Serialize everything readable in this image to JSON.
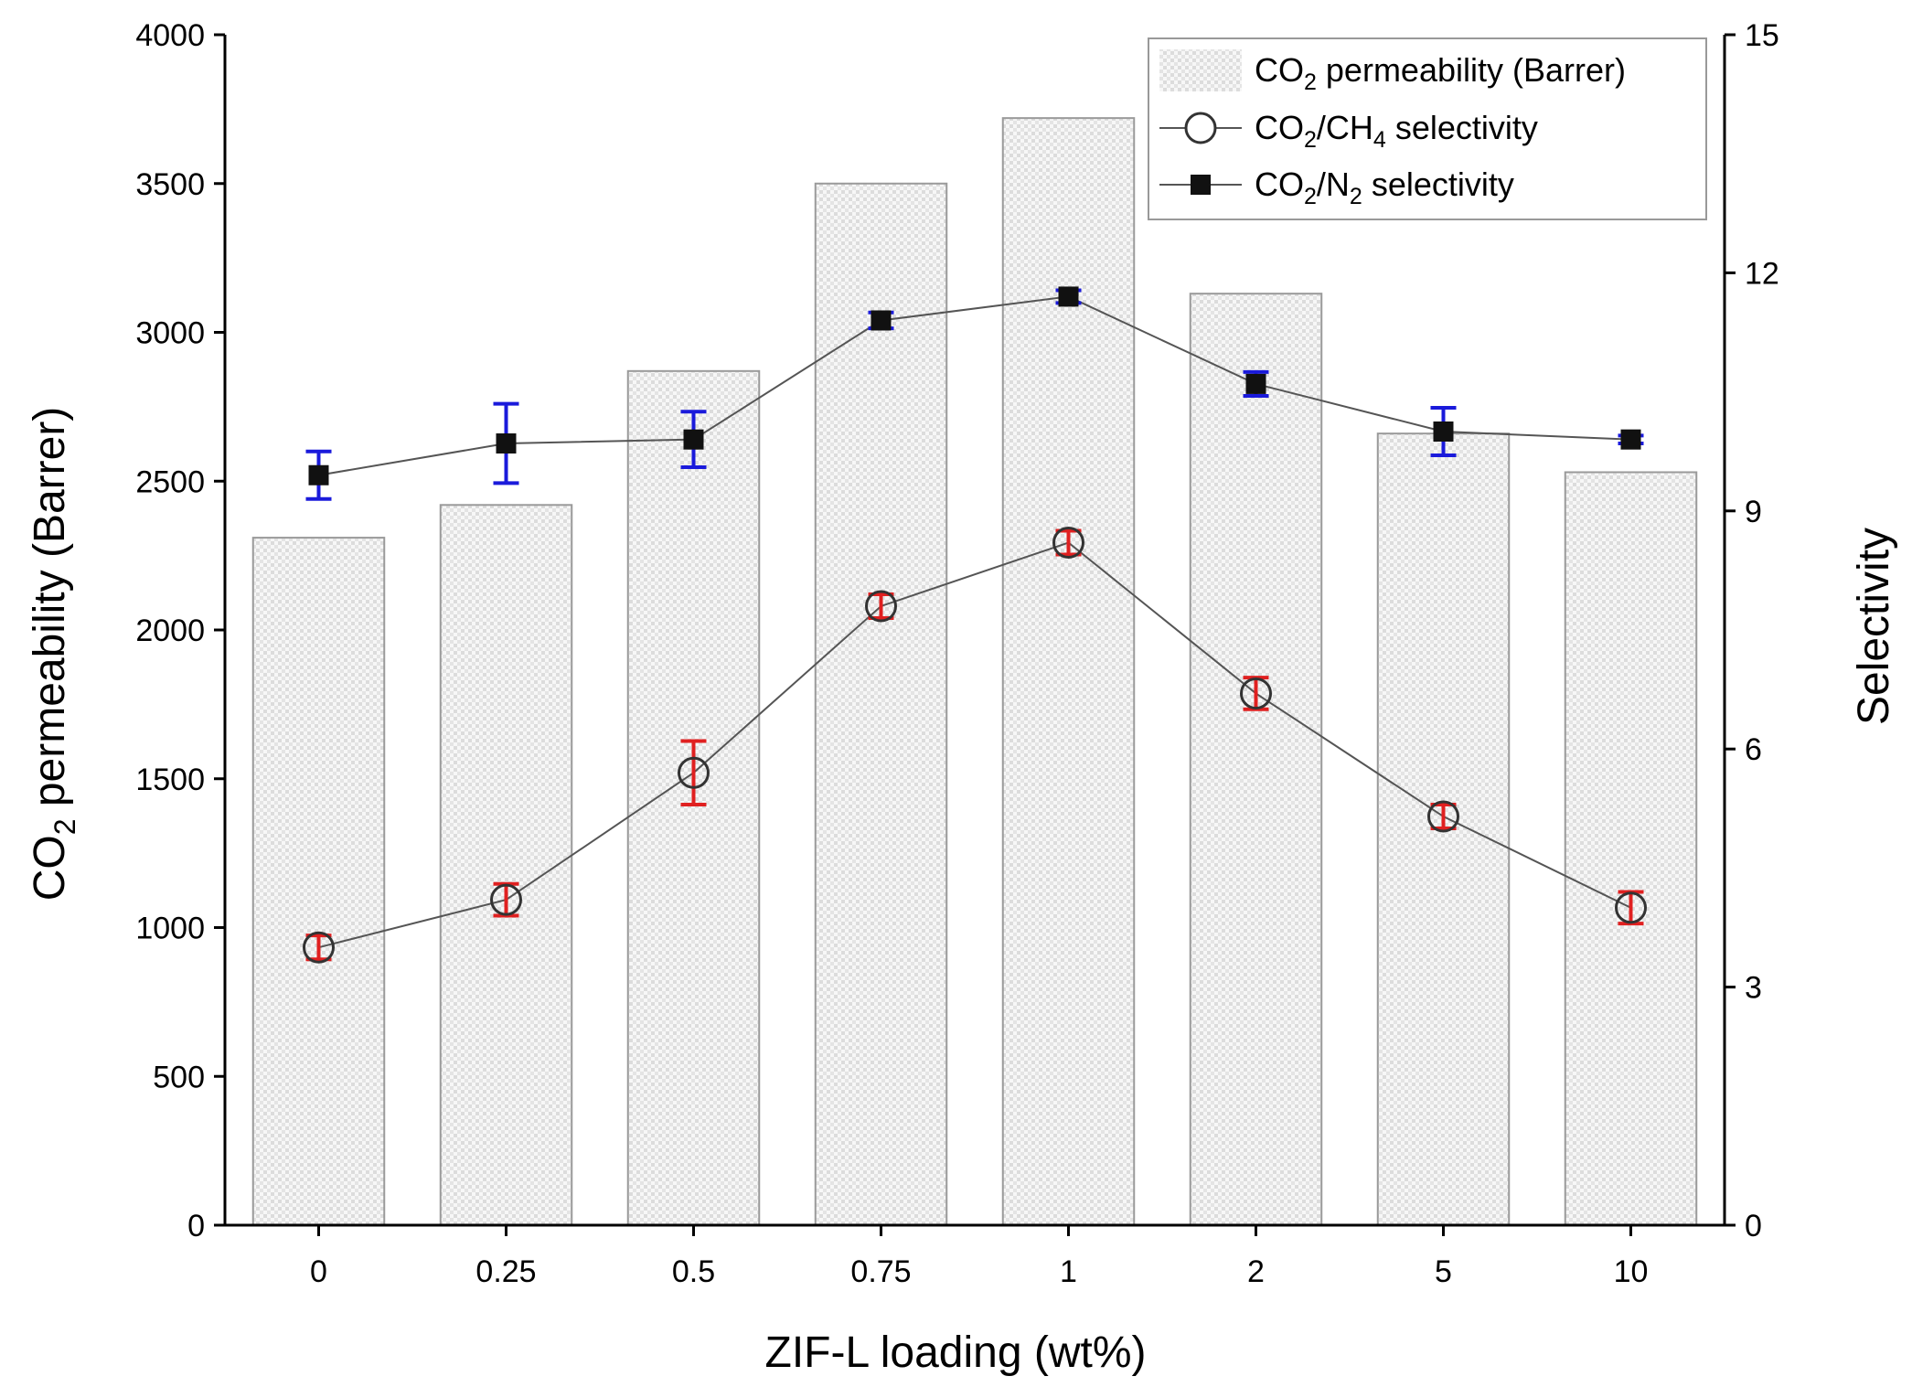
{
  "chart_data": {
    "type": "bar+line",
    "categories": [
      "0",
      "0.25",
      "0.5",
      "0.75",
      "1",
      "2",
      "5",
      "10"
    ],
    "xlabel": "ZIF-L loading (wt%)",
    "ylabel_left": {
      "base": "CO",
      "sub": "2",
      "rest": " permeability (Barrer)"
    },
    "ylabel_right": "Selectivity",
    "ylim_left": [
      0,
      4000
    ],
    "yticks_left": [
      0,
      500,
      1000,
      1500,
      2000,
      2500,
      3000,
      3500,
      4000
    ],
    "ylim_right": [
      0,
      15
    ],
    "yticks_right": [
      0,
      3,
      6,
      9,
      12,
      15
    ],
    "bars": {
      "values": [
        2310,
        2420,
        2870,
        3500,
        3720,
        3130,
        2660,
        2530
      ],
      "legend": {
        "base": "CO",
        "sub": "2",
        "rest": " permeability (Barrer)"
      }
    },
    "series": [
      {
        "name": "CO2/CH4 selectivity",
        "legend": {
          "a": "CO",
          "sub1": "2",
          "b": "/CH",
          "sub2": "4",
          "c": " selectivity"
        },
        "values": [
          3.5,
          4.1,
          5.7,
          7.8,
          8.6,
          6.7,
          5.15,
          4.0
        ],
        "errors": [
          0.15,
          0.2,
          0.4,
          0.15,
          0.15,
          0.2,
          0.15,
          0.2
        ],
        "marker": "open-circle",
        "error_color": "#e02020"
      },
      {
        "name": "CO2/N2 selectivity",
        "legend": {
          "a": "CO",
          "sub1": "2",
          "b": "/N",
          "sub2": "2",
          "c": " selectivity"
        },
        "values": [
          9.45,
          9.85,
          9.9,
          11.4,
          11.7,
          10.6,
          10.0,
          9.9
        ],
        "errors": [
          0.3,
          0.5,
          0.35,
          0.1,
          0.08,
          0.15,
          0.3,
          0.05
        ],
        "marker": "filled-square",
        "error_color": "#1a1adb"
      }
    ],
    "legend_position": "top-right",
    "colors": {
      "bar_fill": "#ebebeb",
      "bar_stroke": "#9a9a9a",
      "line": "#555555",
      "marker_fill": "#111111",
      "axis": "#000000"
    }
  }
}
